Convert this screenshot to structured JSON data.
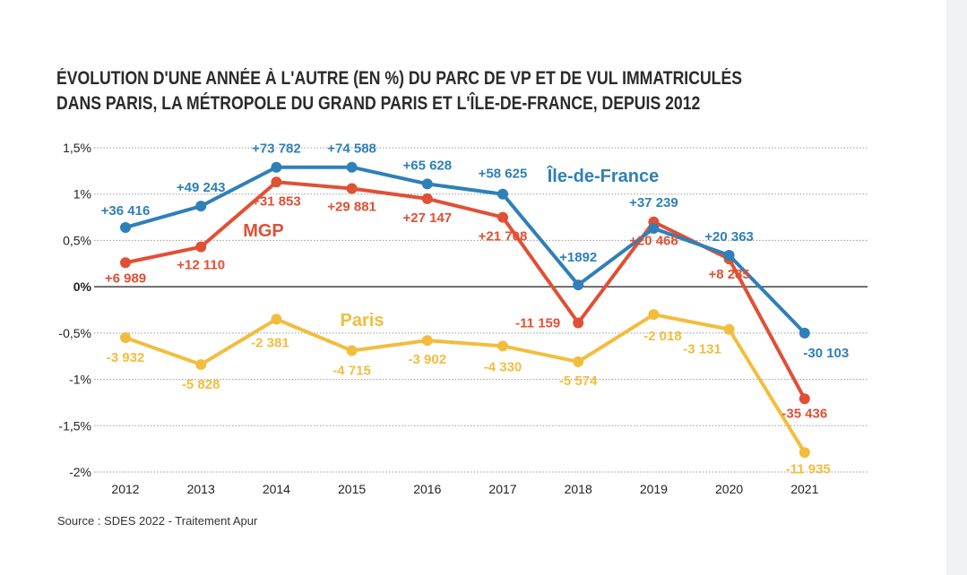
{
  "title_lines": [
    "ÉVOLUTION D'UNE ANNÉE À L'AUTRE (EN %) DU PARC DE VP ET DE VUL IMMATRICULÉS",
    "DANS PARIS, LA MÉTROPOLE DU GRAND PARIS ET L'ÎLE-DE-FRANCE, DEPUIS 2012"
  ],
  "source": "Source : SDES 2022 - Traitement Apur",
  "chart_data": {
    "type": "line",
    "title": "ÉVOLUTION D'UNE ANNÉE À L'AUTRE (EN %) DU PARC DE VP ET DE VUL IMMATRICULÉS DANS PARIS, LA MÉTROPOLE DU GRAND PARIS ET L'ÎLE-DE-FRANCE, DEPUIS 2012",
    "xlabel": "",
    "ylabel": "",
    "ylim": [
      -2,
      1.5
    ],
    "grid": true,
    "categories": [
      "2012",
      "2013",
      "2014",
      "2015",
      "2016",
      "2017",
      "2018",
      "2019",
      "2020",
      "2021"
    ],
    "yticks": [
      {
        "value": 1.5,
        "label": "1,5%"
      },
      {
        "value": 1,
        "label": "1%"
      },
      {
        "value": 0.5,
        "label": "0,5%"
      },
      {
        "value": 0,
        "label": "0%"
      },
      {
        "value": -0.5,
        "label": "-0,5%"
      },
      {
        "value": -1,
        "label": "-1%"
      },
      {
        "value": -1.5,
        "label": "-1,5%"
      },
      {
        "value": -2,
        "label": "-2%"
      }
    ],
    "series": [
      {
        "name": "Île-de-France",
        "color": "#2f7fb9",
        "values": [
          0.64,
          0.87,
          1.29,
          1.29,
          1.11,
          1.0,
          0.02,
          0.63,
          0.34,
          -0.5
        ],
        "labels": [
          "+36 416",
          "+49 243",
          "+73 782",
          "+74 588",
          "+65 628",
          "+58 625",
          "+1892",
          "+37 239",
          "+20 363",
          "-30 103"
        ]
      },
      {
        "name": "MGP",
        "color": "#e05035",
        "values": [
          0.26,
          0.43,
          1.13,
          1.06,
          0.95,
          0.75,
          -0.39,
          0.7,
          0.3,
          -1.21
        ],
        "labels": [
          "+6 989",
          "+12 110",
          "+31 853",
          "+29 881",
          "+27 147",
          "+21 708",
          "-11 159",
          "+20 468",
          "+8 285",
          "-35 436"
        ]
      },
      {
        "name": "Paris",
        "color": "#f2bd3d",
        "values": [
          -0.55,
          -0.84,
          -0.35,
          -0.69,
          -0.58,
          -0.64,
          -0.81,
          -0.3,
          -0.46,
          -1.79
        ],
        "labels": [
          "-3 932",
          "-5 828",
          "-2 381",
          "-4 715",
          "-3 902",
          "-4 330",
          "-5 574",
          "-2 018",
          "-3 131",
          "-11 935"
        ]
      }
    ]
  }
}
